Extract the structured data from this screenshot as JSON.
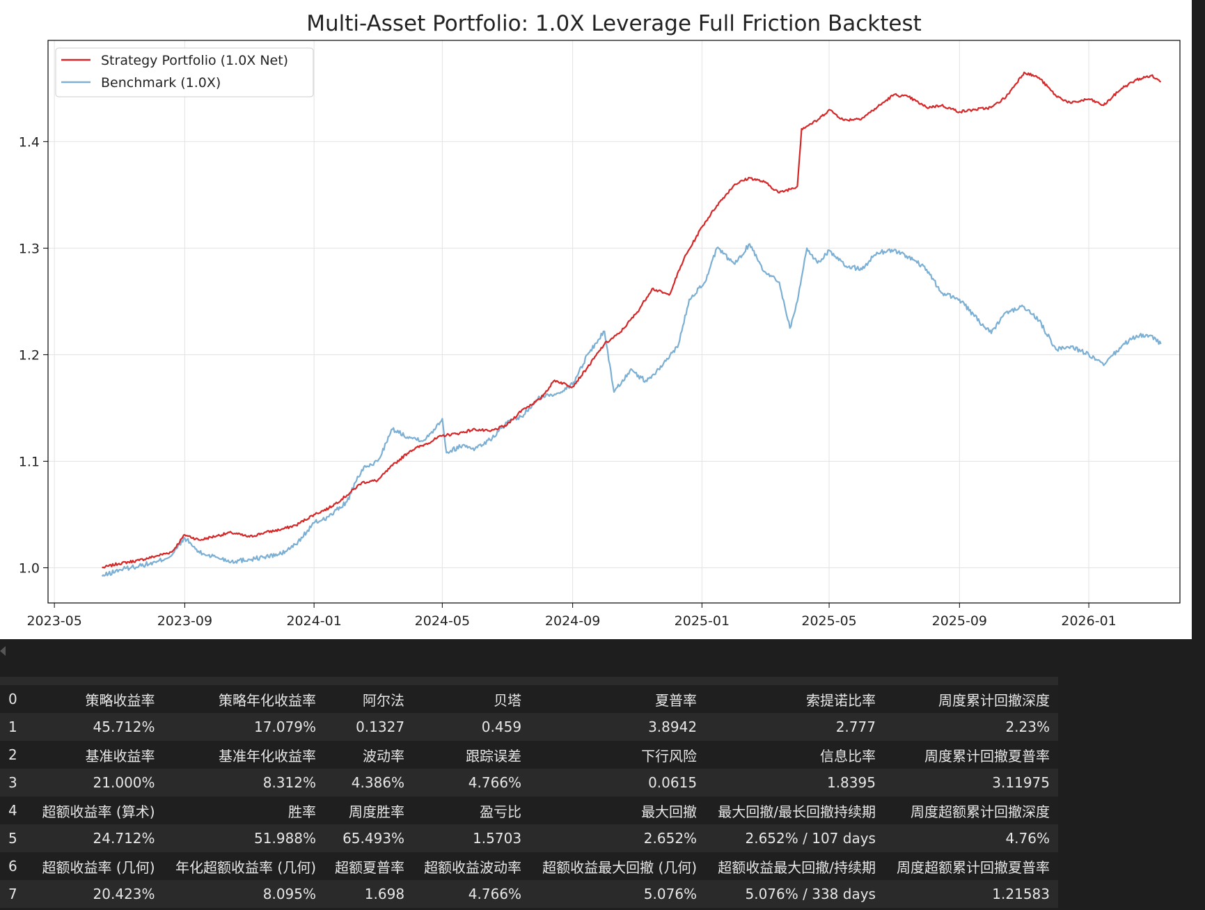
{
  "chart_data": {
    "type": "line",
    "title": "Multi-Asset Portfolio: 1.0X Leverage Full Friction Backtest",
    "xlabel": "",
    "ylabel": "",
    "x_ticks": [
      "2023-05",
      "2023-09",
      "2024-01",
      "2024-05",
      "2024-09",
      "2025-01",
      "2025-05",
      "2025-09",
      "2026-01"
    ],
    "y_ticks": [
      "1.0",
      "1.1",
      "1.2",
      "1.3",
      "1.4"
    ],
    "ylim": [
      0.967,
      1.495
    ],
    "xlim": [
      "2023-04-25",
      "2026-03-28"
    ],
    "grid": true,
    "legend_position": "upper-left",
    "series": [
      {
        "name": "Strategy Portfolio (1.0X Net)",
        "color": "#d62728",
        "points": [
          [
            "2023-06-15",
            1.0
          ],
          [
            "2023-07-01",
            1.004
          ],
          [
            "2023-07-20",
            1.007
          ],
          [
            "2023-08-05",
            1.011
          ],
          [
            "2023-08-20",
            1.015
          ],
          [
            "2023-09-01",
            1.031
          ],
          [
            "2023-09-15",
            1.026
          ],
          [
            "2023-10-01",
            1.03
          ],
          [
            "2023-10-15",
            1.033
          ],
          [
            "2023-11-01",
            1.029
          ],
          [
            "2023-11-15",
            1.033
          ],
          [
            "2023-12-01",
            1.036
          ],
          [
            "2023-12-15",
            1.04
          ],
          [
            "2024-01-01",
            1.05
          ],
          [
            "2024-01-15",
            1.056
          ],
          [
            "2024-02-01",
            1.068
          ],
          [
            "2024-02-15",
            1.08
          ],
          [
            "2024-03-01",
            1.082
          ],
          [
            "2024-03-15",
            1.096
          ],
          [
            "2024-04-01",
            1.11
          ],
          [
            "2024-04-15",
            1.116
          ],
          [
            "2024-05-01",
            1.124
          ],
          [
            "2024-05-15",
            1.126
          ],
          [
            "2024-06-01",
            1.13
          ],
          [
            "2024-06-15",
            1.128
          ],
          [
            "2024-07-01",
            1.134
          ],
          [
            "2024-07-15",
            1.148
          ],
          [
            "2024-08-01",
            1.158
          ],
          [
            "2024-08-15",
            1.176
          ],
          [
            "2024-09-01",
            1.17
          ],
          [
            "2024-09-15",
            1.188
          ],
          [
            "2024-10-01",
            1.21
          ],
          [
            "2024-10-15",
            1.22
          ],
          [
            "2024-11-01",
            1.24
          ],
          [
            "2024-11-15",
            1.262
          ],
          [
            "2024-12-01",
            1.256
          ],
          [
            "2024-12-15",
            1.29
          ],
          [
            "2025-01-01",
            1.32
          ],
          [
            "2025-01-15",
            1.34
          ],
          [
            "2025-02-01",
            1.36
          ],
          [
            "2025-02-15",
            1.366
          ],
          [
            "2025-03-01",
            1.362
          ],
          [
            "2025-03-15",
            1.352
          ],
          [
            "2025-04-01",
            1.358
          ],
          [
            "2025-04-05",
            1.412
          ],
          [
            "2025-04-20",
            1.42
          ],
          [
            "2025-05-01",
            1.43
          ],
          [
            "2025-05-15",
            1.42
          ],
          [
            "2025-06-01",
            1.422
          ],
          [
            "2025-06-15",
            1.432
          ],
          [
            "2025-07-01",
            1.444
          ],
          [
            "2025-07-15",
            1.442
          ],
          [
            "2025-08-01",
            1.432
          ],
          [
            "2025-08-15",
            1.434
          ],
          [
            "2025-09-01",
            1.428
          ],
          [
            "2025-09-15",
            1.43
          ],
          [
            "2025-10-01",
            1.432
          ],
          [
            "2025-10-15",
            1.442
          ],
          [
            "2025-11-01",
            1.465
          ],
          [
            "2025-11-15",
            1.46
          ],
          [
            "2025-12-01",
            1.443
          ],
          [
            "2025-12-15",
            1.436
          ],
          [
            "2026-01-01",
            1.44
          ],
          [
            "2026-01-15",
            1.434
          ],
          [
            "2026-02-01",
            1.45
          ],
          [
            "2026-02-15",
            1.458
          ],
          [
            "2026-03-01",
            1.462
          ],
          [
            "2026-03-10",
            1.456
          ]
        ]
      },
      {
        "name": "Benchmark (1.0X)",
        "color": "#7bafd4",
        "points": [
          [
            "2023-06-15",
            0.992
          ],
          [
            "2023-07-01",
            0.998
          ],
          [
            "2023-07-20",
            1.002
          ],
          [
            "2023-08-05",
            1.005
          ],
          [
            "2023-08-20",
            1.012
          ],
          [
            "2023-09-01",
            1.028
          ],
          [
            "2023-09-15",
            1.014
          ],
          [
            "2023-10-01",
            1.01
          ],
          [
            "2023-10-15",
            1.006
          ],
          [
            "2023-11-01",
            1.008
          ],
          [
            "2023-11-15",
            1.01
          ],
          [
            "2023-12-01",
            1.013
          ],
          [
            "2023-12-15",
            1.022
          ],
          [
            "2024-01-01",
            1.042
          ],
          [
            "2024-01-15",
            1.048
          ],
          [
            "2024-02-01",
            1.062
          ],
          [
            "2024-02-15",
            1.092
          ],
          [
            "2024-03-01",
            1.1
          ],
          [
            "2024-03-15",
            1.13
          ],
          [
            "2024-04-01",
            1.122
          ],
          [
            "2024-04-15",
            1.12
          ],
          [
            "2024-05-01",
            1.14
          ],
          [
            "2024-05-05",
            1.108
          ],
          [
            "2024-05-20",
            1.115
          ],
          [
            "2024-06-01",
            1.112
          ],
          [
            "2024-06-15",
            1.12
          ],
          [
            "2024-07-01",
            1.136
          ],
          [
            "2024-07-15",
            1.142
          ],
          [
            "2024-08-01",
            1.16
          ],
          [
            "2024-08-15",
            1.163
          ],
          [
            "2024-09-01",
            1.172
          ],
          [
            "2024-09-15",
            1.2
          ],
          [
            "2024-10-01",
            1.222
          ],
          [
            "2024-10-10",
            1.165
          ],
          [
            "2024-10-25",
            1.185
          ],
          [
            "2024-11-10",
            1.175
          ],
          [
            "2024-11-25",
            1.19
          ],
          [
            "2024-12-10",
            1.21
          ],
          [
            "2024-12-20",
            1.252
          ],
          [
            "2025-01-05",
            1.27
          ],
          [
            "2025-01-15",
            1.3
          ],
          [
            "2025-02-01",
            1.285
          ],
          [
            "2025-02-15",
            1.304
          ],
          [
            "2025-03-01",
            1.278
          ],
          [
            "2025-03-15",
            1.268
          ],
          [
            "2025-03-25",
            1.225
          ],
          [
            "2025-04-01",
            1.25
          ],
          [
            "2025-04-10",
            1.3
          ],
          [
            "2025-04-20",
            1.286
          ],
          [
            "2025-05-01",
            1.298
          ],
          [
            "2025-05-15",
            1.284
          ],
          [
            "2025-06-01",
            1.28
          ],
          [
            "2025-06-15",
            1.296
          ],
          [
            "2025-07-01",
            1.298
          ],
          [
            "2025-07-15",
            1.292
          ],
          [
            "2025-08-01",
            1.28
          ],
          [
            "2025-08-15",
            1.258
          ],
          [
            "2025-09-01",
            1.252
          ],
          [
            "2025-09-15",
            1.236
          ],
          [
            "2025-10-01",
            1.22
          ],
          [
            "2025-10-15",
            1.24
          ],
          [
            "2025-11-01",
            1.245
          ],
          [
            "2025-11-15",
            1.232
          ],
          [
            "2025-12-01",
            1.205
          ],
          [
            "2025-12-15",
            1.208
          ],
          [
            "2026-01-01",
            1.2
          ],
          [
            "2026-01-15",
            1.19
          ],
          [
            "2026-02-01",
            1.208
          ],
          [
            "2026-02-15",
            1.218
          ],
          [
            "2026-03-01",
            1.218
          ],
          [
            "2026-03-10",
            1.21
          ]
        ]
      }
    ]
  },
  "stats_table": {
    "rows": [
      {
        "index": "0",
        "cells": [
          "策略收益率",
          "策略年化收益率",
          "阿尔法",
          "贝塔",
          "夏普率",
          "索提诺比率",
          "周度累计回撤深度"
        ]
      },
      {
        "index": "1",
        "cells": [
          "45.712%",
          "17.079%",
          "0.1327",
          "0.459",
          "3.8942",
          "2.777",
          "2.23%"
        ]
      },
      {
        "index": "2",
        "cells": [
          "基准收益率",
          "基准年化收益率",
          "波动率",
          "跟踪误差",
          "下行风险",
          "信息比率",
          "周度累计回撤夏普率"
        ]
      },
      {
        "index": "3",
        "cells": [
          "21.000%",
          "8.312%",
          "4.386%",
          "4.766%",
          "0.0615",
          "1.8395",
          "3.11975"
        ]
      },
      {
        "index": "4",
        "cells": [
          "超额收益率 (算术)",
          "胜率",
          "周度胜率",
          "盈亏比",
          "最大回撤",
          "最大回撤/最长回撤持续期",
          "周度超额累计回撤深度"
        ]
      },
      {
        "index": "5",
        "cells": [
          "24.712%",
          "51.988%",
          "65.493%",
          "1.5703",
          "2.652%",
          "2.652% / 107 days",
          "4.76%"
        ]
      },
      {
        "index": "6",
        "cells": [
          "超额收益率 (几何)",
          "年化超额收益率 (几何)",
          "超额夏普率",
          "超额收益波动率",
          "超额收益最大回撤 (几何)",
          "超额收益最大回撤/持续期",
          "周度超额累计回撤夏普率"
        ]
      },
      {
        "index": "7",
        "cells": [
          "20.423%",
          "8.095%",
          "1.698",
          "4.766%",
          "5.076%",
          "5.076% / 338 days",
          "1.21583"
        ]
      }
    ]
  }
}
